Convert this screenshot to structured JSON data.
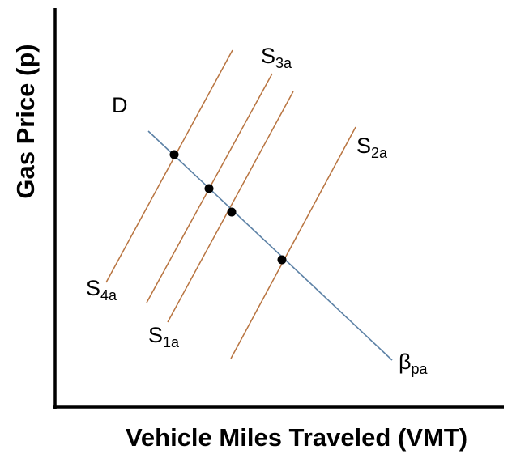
{
  "axes": {
    "x_label": "Vehicle Miles Traveled (VMT)",
    "y_label": "Gas Price (p)"
  },
  "curves": {
    "demand": {
      "label": "D",
      "end_label": {
        "main": "β",
        "sub": "pa"
      }
    },
    "supply": [
      {
        "main": "S",
        "sub": "4a"
      },
      {
        "main": "S",
        "sub": "3a"
      },
      {
        "main": "S",
        "sub": "1a"
      },
      {
        "main": "S",
        "sub": "2a"
      }
    ]
  }
}
